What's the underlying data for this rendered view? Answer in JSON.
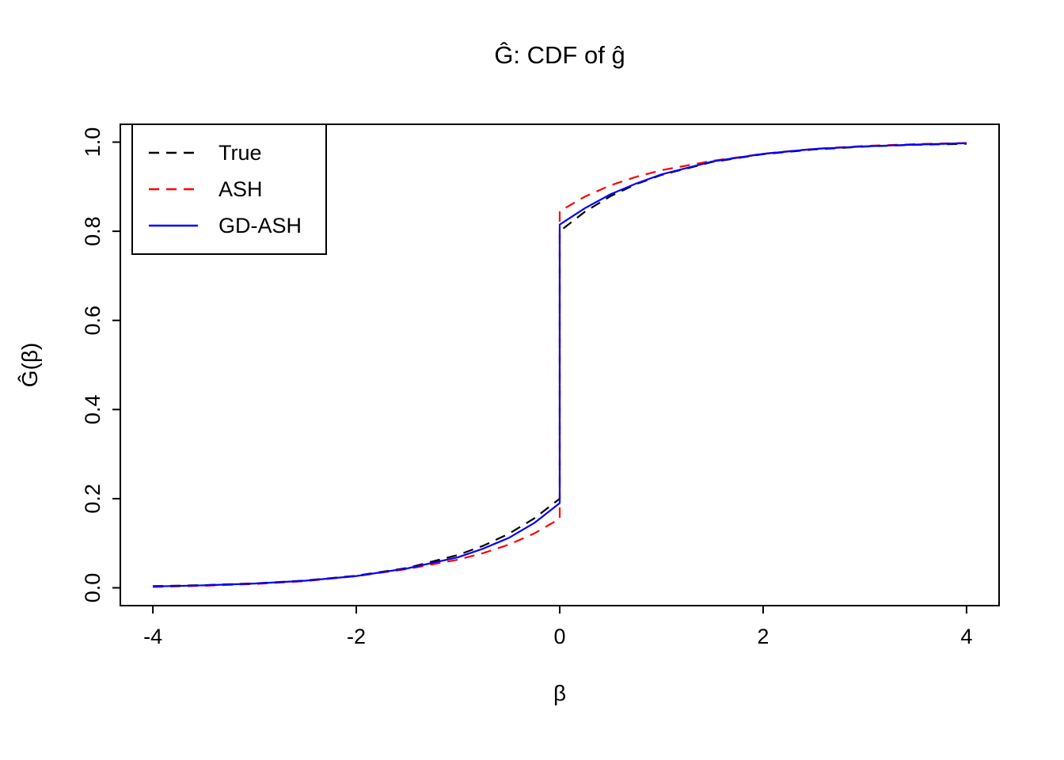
{
  "figure": {
    "background": "#FFFFFF"
  },
  "chart_data": {
    "type": "line",
    "title": "Ĝ: CDF of ĝ",
    "xlabel": "β",
    "ylabel": "Ĝ(β)",
    "xlim": [
      -4,
      4
    ],
    "ylim": [
      0,
      1
    ],
    "axis_padding_frac": 0.04,
    "grid": false,
    "legend_position": "top-left",
    "x_ticks": [
      {
        "v": -4,
        "label": "-4"
      },
      {
        "v": -2,
        "label": "-2"
      },
      {
        "v": 0,
        "label": "0"
      },
      {
        "v": 2,
        "label": "2"
      },
      {
        "v": 4,
        "label": "4"
      }
    ],
    "y_ticks": [
      {
        "v": 0.0,
        "label": "0.0"
      },
      {
        "v": 0.2,
        "label": "0.2"
      },
      {
        "v": 0.4,
        "label": "0.4"
      },
      {
        "v": 0.6,
        "label": "0.6"
      },
      {
        "v": 0.8,
        "label": "0.8"
      },
      {
        "v": 1.0,
        "label": "1.0"
      }
    ],
    "series": [
      {
        "name": "True",
        "color": "#000000",
        "line_type": "dashed",
        "points": [
          [
            -4,
            0.0037
          ],
          [
            -3.5,
            0.006
          ],
          [
            -3,
            0.01
          ],
          [
            -2.5,
            0.0164
          ],
          [
            -2,
            0.0271
          ],
          [
            -1.5,
            0.0446
          ],
          [
            -1,
            0.0736
          ],
          [
            -0.75,
            0.0945
          ],
          [
            -0.5,
            0.1213
          ],
          [
            -0.25,
            0.1558
          ],
          [
            0,
            0.2
          ],
          [
            0,
            0.8
          ],
          [
            0.25,
            0.8442
          ],
          [
            0.5,
            0.8787
          ],
          [
            0.75,
            0.9055
          ],
          [
            1,
            0.9264
          ],
          [
            1.5,
            0.9554
          ],
          [
            2,
            0.9729
          ],
          [
            2.5,
            0.9836
          ],
          [
            3,
            0.99
          ],
          [
            3.5,
            0.994
          ],
          [
            4,
            0.9963
          ]
        ]
      },
      {
        "name": "ASH",
        "color": "#FF0000",
        "line_type": "dashed",
        "points": [
          [
            -4,
            0.002
          ],
          [
            -3.5,
            0.0045
          ],
          [
            -3,
            0.0085
          ],
          [
            -2.5,
            0.015
          ],
          [
            -2,
            0.026
          ],
          [
            -1.5,
            0.042
          ],
          [
            -1,
            0.063
          ],
          [
            -0.75,
            0.078
          ],
          [
            -0.5,
            0.097
          ],
          [
            -0.25,
            0.122
          ],
          [
            0,
            0.155
          ],
          [
            0,
            0.845
          ],
          [
            0.25,
            0.878
          ],
          [
            0.5,
            0.903
          ],
          [
            0.75,
            0.922
          ],
          [
            1,
            0.937
          ],
          [
            1.5,
            0.958
          ],
          [
            2,
            0.974
          ],
          [
            2.5,
            0.985
          ],
          [
            3,
            0.9915
          ],
          [
            3.5,
            0.9955
          ],
          [
            4,
            0.998
          ]
        ]
      },
      {
        "name": "GD-ASH",
        "color": "#0000FF",
        "line_type": "solid",
        "points": [
          [
            -4,
            0.003
          ],
          [
            -3.5,
            0.0055
          ],
          [
            -3,
            0.0095
          ],
          [
            -2.5,
            0.016
          ],
          [
            -2,
            0.0265
          ],
          [
            -1.5,
            0.0435
          ],
          [
            -1,
            0.0685
          ],
          [
            -0.75,
            0.088
          ],
          [
            -0.5,
            0.112
          ],
          [
            -0.25,
            0.1455
          ],
          [
            0,
            0.19
          ],
          [
            0,
            0.815
          ],
          [
            0.25,
            0.852
          ],
          [
            0.5,
            0.883
          ],
          [
            0.75,
            0.907
          ],
          [
            1,
            0.9275
          ],
          [
            1.5,
            0.9565
          ],
          [
            2,
            0.9735
          ],
          [
            2.5,
            0.9845
          ],
          [
            3,
            0.9905
          ],
          [
            3.5,
            0.9945
          ],
          [
            4,
            0.9975
          ]
        ]
      }
    ]
  }
}
